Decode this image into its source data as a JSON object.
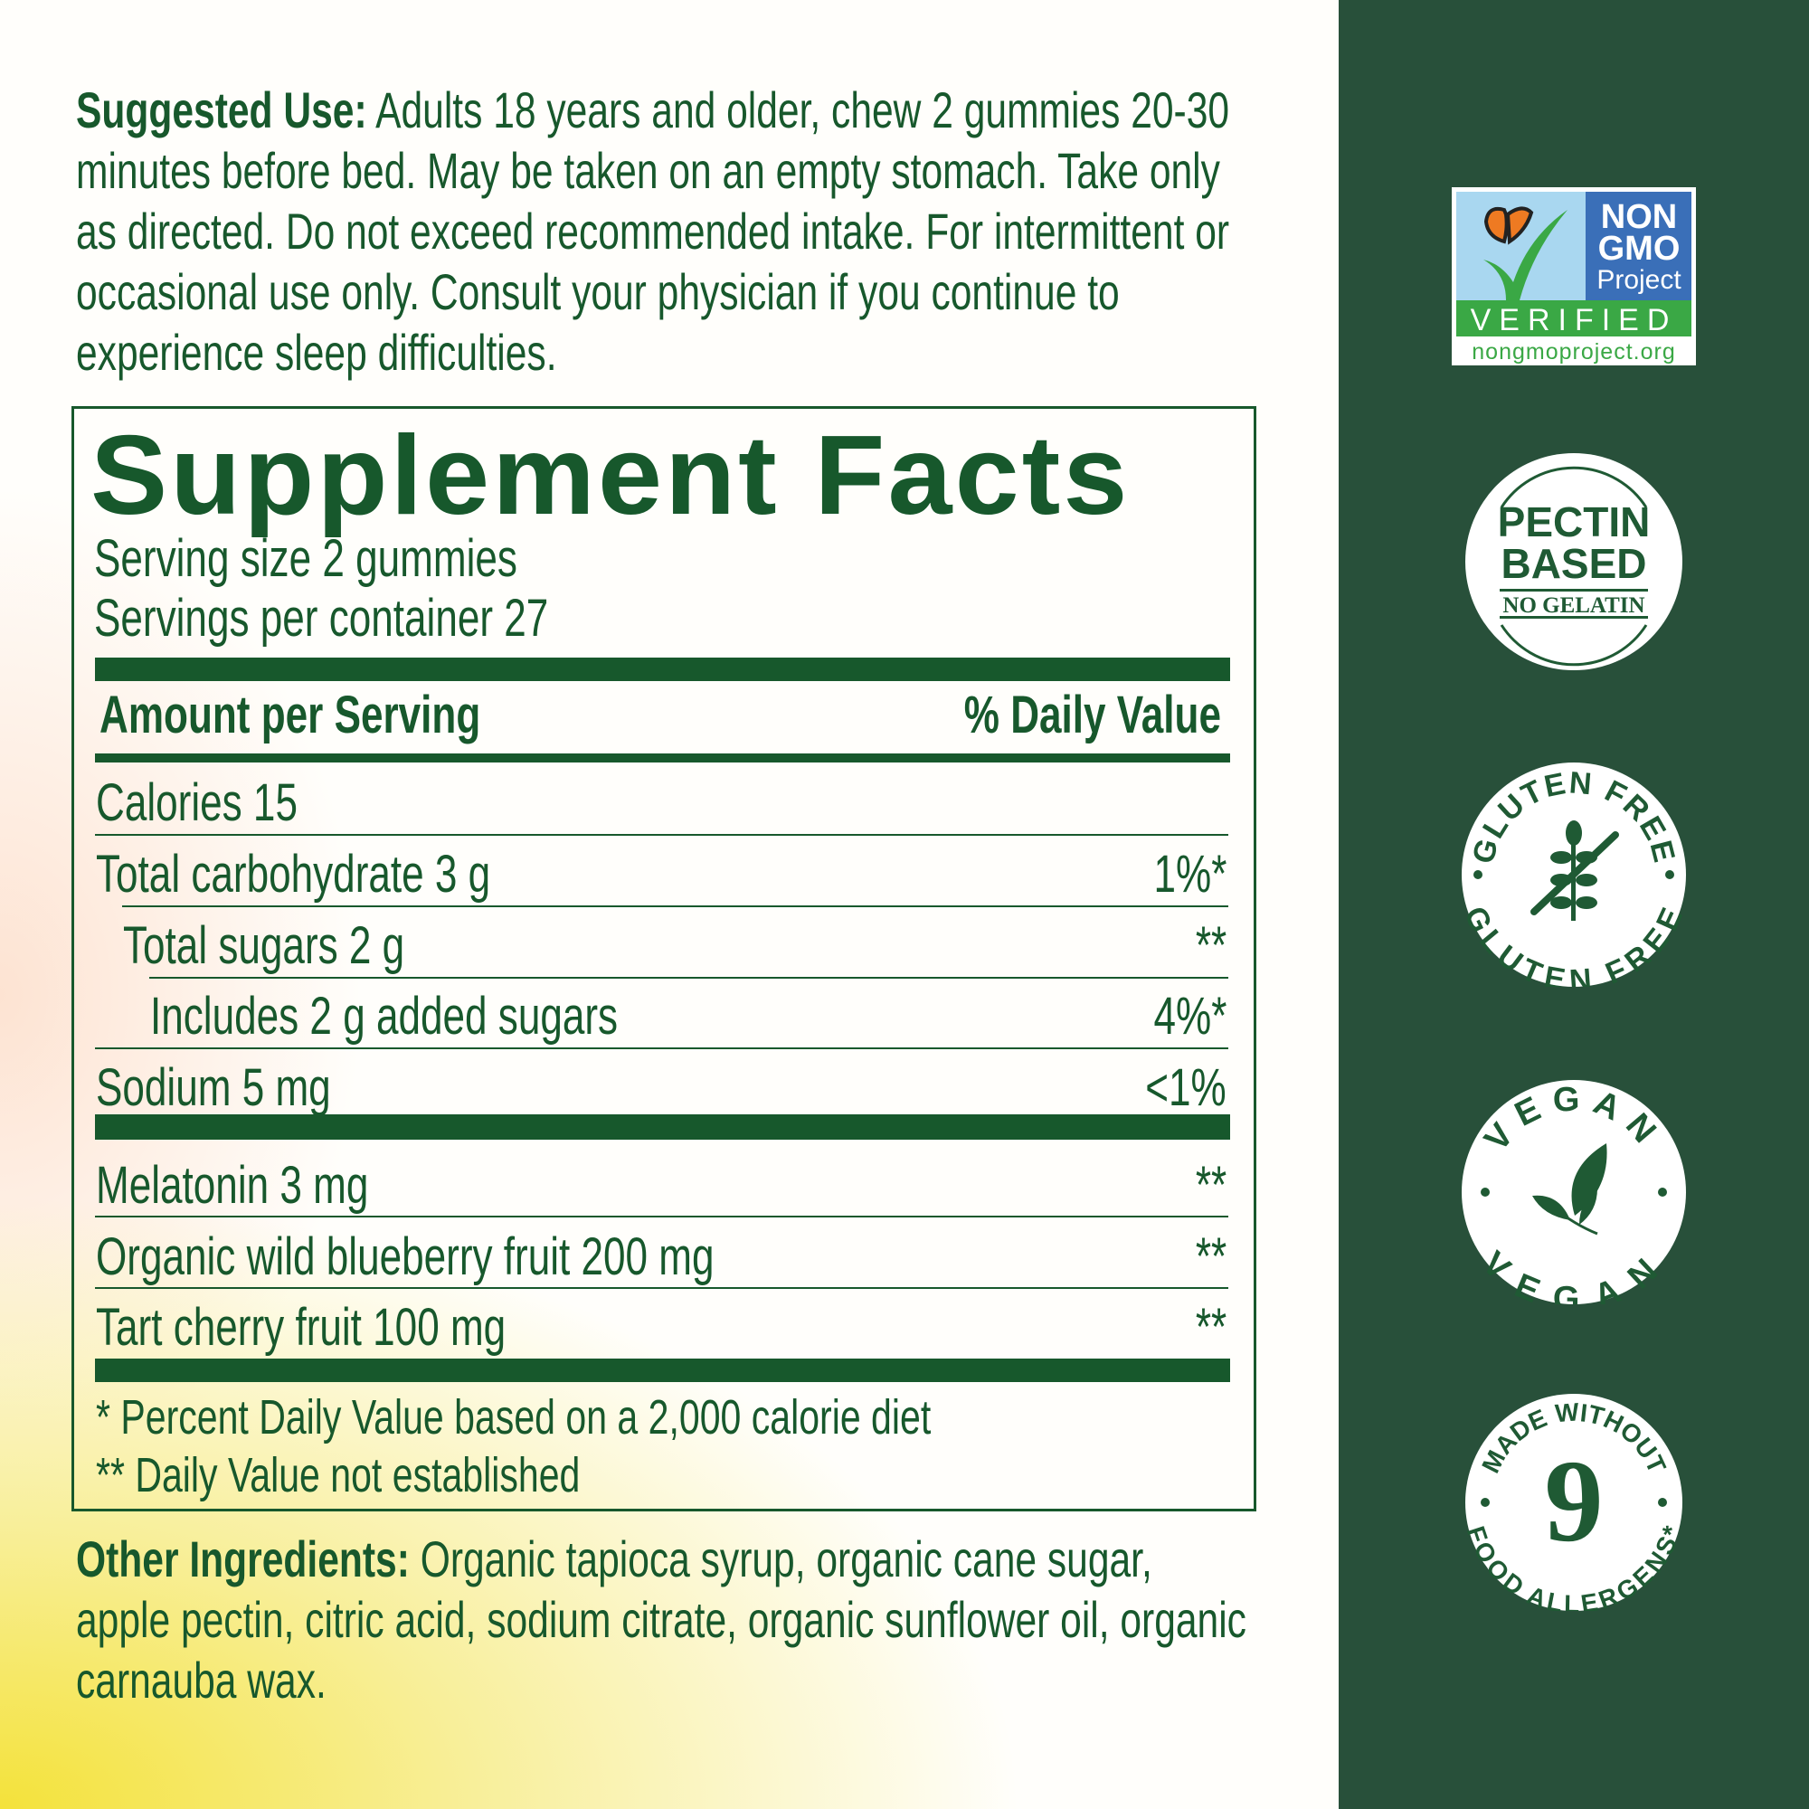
{
  "suggested_use": {
    "label": "Suggested Use:",
    "lines": [
      "Adults 18 years and older, chew 2 gummies 20-30",
      "minutes before bed. May be taken on an empty stomach. Take only",
      "as directed. Do not exceed recommended intake. For intermittent or",
      "occasional use only. Consult your physician if you continue to",
      "experience sleep difficulties."
    ]
  },
  "facts": {
    "title": "Supplement Facts",
    "serving_size": "Serving size 2 gummies",
    "servings_per_container": "Servings per container 27",
    "amount_header": "Amount per Serving",
    "dv_header": "% Daily Value",
    "rows": [
      {
        "label": "Calories 15",
        "dv": "",
        "indent": 0
      },
      {
        "label": "Total carbohydrate 3 g",
        "dv": "1%*",
        "indent": 0
      },
      {
        "label": "Total sugars 2 g",
        "dv": "**",
        "indent": 1
      },
      {
        "label": "Includes 2 g added sugars",
        "dv": "4%*",
        "indent": 2
      },
      {
        "label": "Sodium 5 mg",
        "dv": "<1%",
        "indent": 0
      },
      {
        "label": "Melatonin 3 mg",
        "dv": "**",
        "indent": 0
      },
      {
        "label": "Organic wild blueberry fruit 200 mg",
        "dv": "**",
        "indent": 0
      },
      {
        "label": "Tart cherry fruit 100 mg",
        "dv": "**",
        "indent": 0
      }
    ],
    "footnotes": [
      "* Percent Daily Value based on a 2,000 calorie diet",
      "** Daily Value not established"
    ]
  },
  "other_ingredients": {
    "label": "Other Ingredients:",
    "lines": [
      "Organic tapioca syrup, organic cane sugar,",
      "apple pectin, citric acid, sodium citrate, organic sunflower oil, organic",
      "carnauba wax."
    ]
  },
  "badges": {
    "nongmo": {
      "line1": "NON",
      "line2": "GMO",
      "line3": "Project",
      "verified": "VERIFIED",
      "url": "nongmoproject.org"
    },
    "pectin": {
      "line1": "PECTIN",
      "line2": "BASED",
      "line3": "NO GELATIN"
    },
    "gluten": {
      "top": "GLUTEN FREE",
      "bottom": "GLUTEN FREE",
      "icon": "wheat-crossed-icon"
    },
    "vegan": {
      "top": "VEGAN",
      "bottom": "VEGAN",
      "icon": "leaf-icon"
    },
    "allergen": {
      "top": "MADE WITHOUT",
      "number": "9",
      "bottom": "FOOD ALLERGENS*"
    }
  },
  "colors": {
    "text_green": "#17582c",
    "panel_green": "#28503a",
    "nongmo_blue": "#3a6fb8",
    "nongmo_green": "#3aa845",
    "butterfly_orange": "#ee7a22"
  }
}
